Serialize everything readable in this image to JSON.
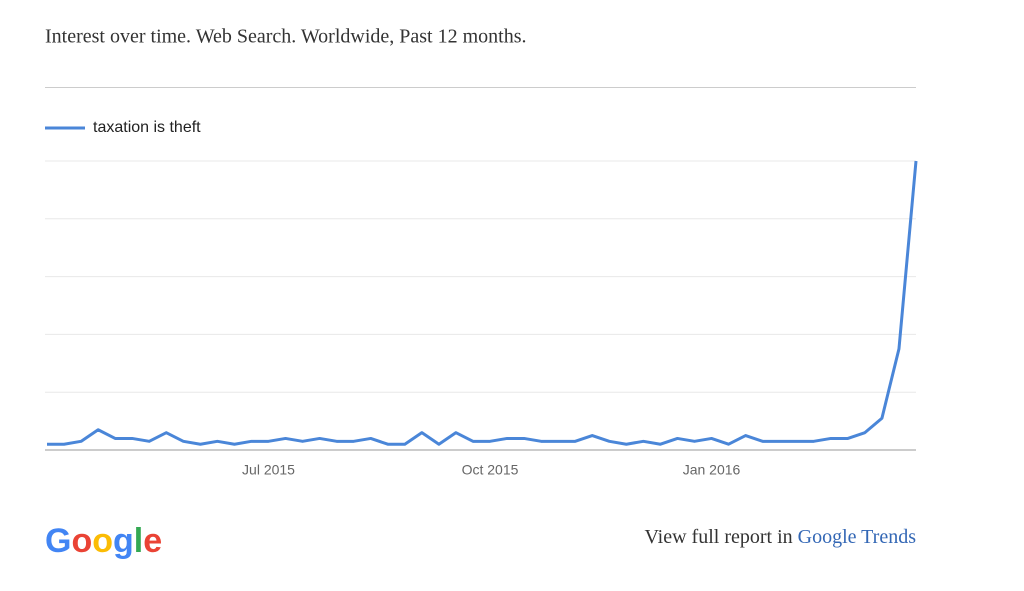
{
  "chart_data": {
    "type": "line",
    "title": "Interest over time. Web Search. Worldwide, Past 12 months.",
    "categories": [
      null,
      null,
      null,
      null,
      null,
      null,
      null,
      null,
      null,
      null,
      null,
      null,
      null,
      "Jul 2015",
      null,
      null,
      null,
      null,
      null,
      null,
      null,
      null,
      null,
      null,
      null,
      null,
      "Oct 2015",
      null,
      null,
      null,
      null,
      null,
      null,
      null,
      null,
      null,
      null,
      null,
      null,
      "Jan 2016",
      null,
      null,
      null,
      null,
      null,
      null,
      null,
      null,
      null,
      null,
      null,
      null
    ],
    "series": [
      {
        "name": "taxation is theft",
        "color": "#4a86d8",
        "values": [
          2,
          2,
          3,
          7,
          4,
          4,
          3,
          6,
          3,
          2,
          3,
          2,
          3,
          3,
          4,
          3,
          4,
          3,
          3,
          4,
          2,
          2,
          6,
          2,
          6,
          3,
          3,
          4,
          4,
          3,
          3,
          3,
          5,
          3,
          2,
          3,
          2,
          4,
          3,
          4,
          2,
          5,
          3,
          3,
          3,
          3,
          4,
          4,
          6,
          11,
          35,
          100
        ]
      }
    ],
    "ylim": [
      0,
      100
    ],
    "yticks": [
      0,
      20,
      40,
      60,
      80,
      100
    ],
    "grid": true,
    "legend": "top-left"
  },
  "footer": {
    "logo": "Google",
    "report_text": "View full report in",
    "link": "Google Trends"
  }
}
